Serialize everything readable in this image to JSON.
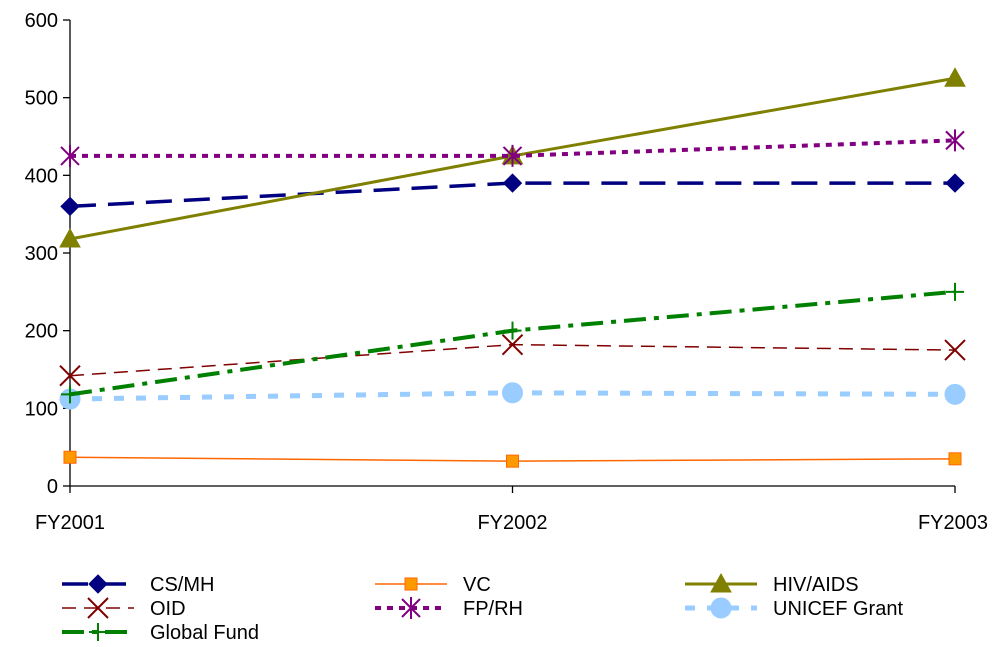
{
  "chart_data": {
    "type": "line",
    "categories": [
      "FY2001",
      "FY2002",
      "FY2003"
    ],
    "ylim": [
      0,
      600
    ],
    "yticks": [
      0,
      100,
      200,
      300,
      400,
      500,
      600
    ],
    "grid": false,
    "legend_position": "bottom",
    "series": [
      {
        "name": "CS/MH",
        "values": [
          360,
          390,
          390
        ],
        "color": "#000080",
        "dash": "long-dash",
        "marker": "diamond"
      },
      {
        "name": "VC",
        "values": [
          37,
          32,
          35
        ],
        "color": "#ff6600",
        "dash": "solid",
        "marker": "square"
      },
      {
        "name": "HIV/AIDS",
        "values": [
          318,
          425,
          525
        ],
        "color": "#808000",
        "dash": "solid",
        "marker": "triangle"
      },
      {
        "name": "OID",
        "values": [
          142,
          182,
          175
        ],
        "color": "#800000",
        "dash": "dashed",
        "marker": "x"
      },
      {
        "name": "FP/RH",
        "values": [
          425,
          425,
          445
        ],
        "color": "#800080",
        "dash": "dotted",
        "marker": "star"
      },
      {
        "name": "UNICEF Grant",
        "values": [
          112,
          120,
          118
        ],
        "color": "#99ccff",
        "dash": "square-dash",
        "marker": "circle"
      },
      {
        "name": "Global Fund",
        "values": [
          118,
          200,
          250
        ],
        "color": "#008000",
        "dash": "dash-dot",
        "marker": "plus"
      }
    ]
  }
}
